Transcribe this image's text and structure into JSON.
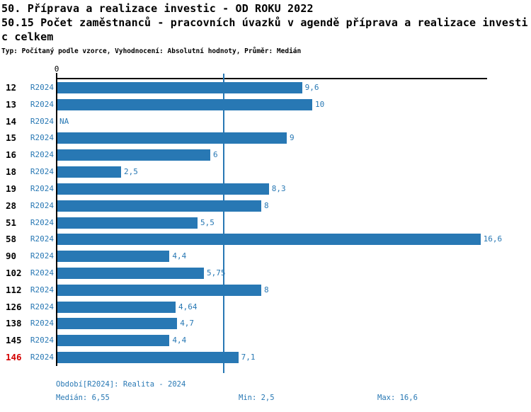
{
  "header": {
    "title_line1": "50. Příprava a realizace investic - OD ROKU 2022",
    "title_line2": "50.15 Počet zaměstnanců - pracovních úvazků v agendě příprava a realizace investi",
    "title_line3": "c celkem",
    "meta_line": "Typ: Počítaný podle vzorce, Vyhodnocení: Absolutní hodnoty, Průměr: Medián"
  },
  "colors": {
    "bar": "#2878b4",
    "accent_text": "#2878b4",
    "highlight_red": "#d40000",
    "axis_black": "#000000"
  },
  "chart_data": {
    "type": "bar",
    "orientation": "horizontal",
    "title": "50.15 Počet zaměstnanců - pracovních úvazků v agendě příprava a realizace investic celkem",
    "axis": {
      "origin_label": "0",
      "xlim": [
        0,
        16.9
      ],
      "grid": false
    },
    "series_label": "R2024",
    "categories": [
      "12",
      "13",
      "14",
      "15",
      "16",
      "18",
      "19",
      "28",
      "51",
      "58",
      "90",
      "102",
      "112",
      "126",
      "138",
      "145",
      "146"
    ],
    "values": [
      9.6,
      10,
      null,
      9,
      6,
      2.5,
      8.3,
      8,
      5.5,
      16.6,
      4.4,
      5.75,
      8,
      4.64,
      4.7,
      4.4,
      7.1
    ],
    "value_labels": [
      "9,6",
      "10",
      "NA",
      "9",
      "6",
      "2,5",
      "8,3",
      "8",
      "5,5",
      "16,6",
      "4,4",
      "5,75",
      "8",
      "4,64",
      "4,7",
      "4,4",
      "7,1"
    ],
    "median": 6.55,
    "min": 2.5,
    "max": 16.6,
    "highlighted_category": "146"
  },
  "footer": {
    "period_line": "Období[R2024]: Realita - 2024",
    "median_label": "Medián: 6,55",
    "min_label": "Min: 2,5",
    "max_label": "Max: 16,6"
  }
}
